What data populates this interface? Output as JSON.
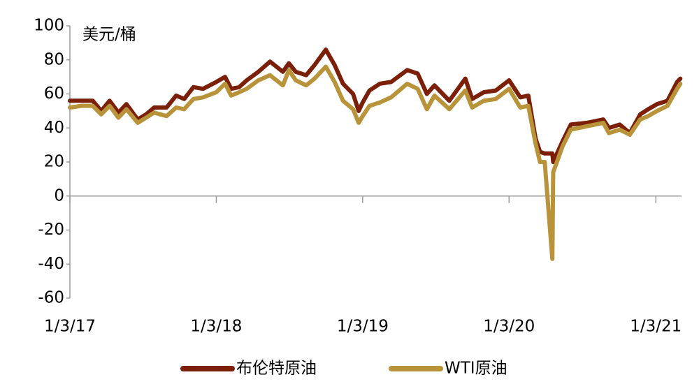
{
  "chart_data": {
    "type": "line",
    "y_label": "美元/桶",
    "x": [
      "1/3/17",
      "2/1/17",
      "3/1/17",
      "3/22/17",
      "4/12/17",
      "5/4/17",
      "5/24/17",
      "6/21/17",
      "7/12/17",
      "8/1/17",
      "9/1/17",
      "9/25/17",
      "10/15/17",
      "11/7/17",
      "12/1/17",
      "1/3/18",
      "1/25/18",
      "2/9/18",
      "3/1/18",
      "3/20/18",
      "4/18/18",
      "5/17/18",
      "6/18/18",
      "7/3/18",
      "7/20/18",
      "8/15/18",
      "9/5/18",
      "10/3/18",
      "10/25/18",
      "11/15/18",
      "12/10/18",
      "12/24/18",
      "1/3/19",
      "1/20/19",
      "2/15/19",
      "3/15/19",
      "4/24/19",
      "5/20/19",
      "6/12/19",
      "7/1/19",
      "8/7/19",
      "9/16/19",
      "10/3/19",
      "11/1/19",
      "12/1/19",
      "1/3/20",
      "1/31/20",
      "2/20/20",
      "3/9/20",
      "3/20/20",
      "4/1/20",
      "4/20/20",
      "4/22/20",
      "5/15/20",
      "6/5/20",
      "7/15/20",
      "8/25/20",
      "9/8/20",
      "10/5/20",
      "10/30/20",
      "11/25/20",
      "12/15/20",
      "1/6/21",
      "2/1/21",
      "2/25/21",
      "3/5/21"
    ],
    "series": [
      {
        "name": "布伦特原油",
        "color": "#7c1f08",
        "values": [
          56,
          56,
          56,
          50,
          56,
          49,
          54,
          45,
          48,
          52,
          52,
          59,
          57,
          64,
          63,
          67,
          70,
          63,
          64,
          68,
          73,
          79,
          73,
          78,
          73,
          71,
          77,
          86,
          77,
          66,
          60,
          50,
          55,
          62,
          66,
          67,
          74,
          72,
          60,
          65,
          56,
          69,
          57,
          61,
          62,
          68,
          58,
          59,
          34,
          26,
          25,
          25,
          20,
          32,
          42,
          43,
          45,
          40,
          42,
          37,
          48,
          51,
          54,
          56,
          67,
          69
        ]
      },
      {
        "name": "WTI原油",
        "color": "#b8933a",
        "values": [
          52,
          53,
          53,
          48,
          53,
          46,
          51,
          43,
          46,
          49,
          47,
          52,
          51,
          57,
          58,
          61,
          66,
          59,
          61,
          63,
          68,
          71,
          65,
          74,
          68,
          65,
          69,
          76,
          67,
          56,
          51,
          43,
          47,
          53,
          55,
          58,
          66,
          63,
          51,
          59,
          51,
          62,
          52,
          56,
          57,
          63,
          52,
          53,
          31,
          20,
          20,
          -37,
          14,
          29,
          39,
          41,
          43,
          37,
          39,
          36,
          45,
          47,
          50,
          53,
          63,
          66
        ]
      }
    ],
    "xlim": [
      "1/3/17",
      "3/8/21"
    ],
    "xticks": [
      "1/3/17",
      "1/3/18",
      "1/3/19",
      "1/3/20",
      "1/3/21"
    ],
    "ylim": [
      -60,
      100
    ],
    "yticks": [
      -60,
      -40,
      -20,
      0,
      20,
      40,
      60,
      80,
      100
    ],
    "grid": false,
    "legend": "bottom"
  }
}
